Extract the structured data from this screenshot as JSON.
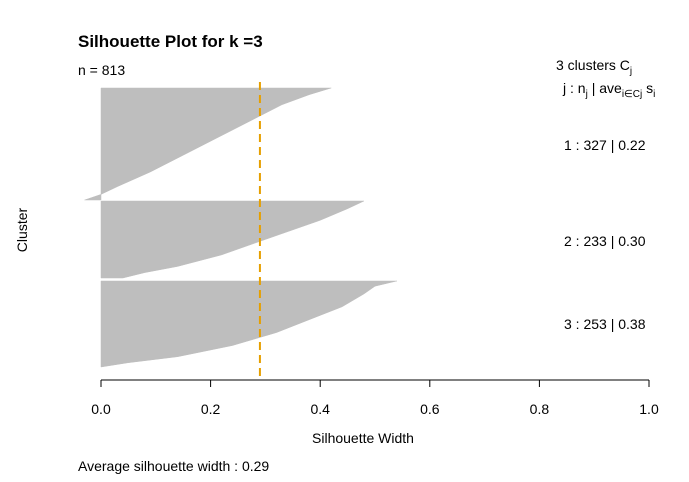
{
  "chart_data": {
    "type": "silhouette",
    "title": "Silhouette Plot for k =3",
    "n_label": "n = 813",
    "xlabel": "Silhouette Width",
    "ylabel": "Cluster",
    "xlim": [
      0,
      1
    ],
    "x_ticks": [
      "0.0",
      "0.2",
      "0.4",
      "0.6",
      "0.8",
      "1.0"
    ],
    "x_tick_values": [
      0,
      0.2,
      0.4,
      0.6,
      0.8,
      1.0
    ],
    "average_width": 0.29,
    "footer": "Average silhouette width :  0.29",
    "legend_header": {
      "line1": "3  clusters  C",
      "line1_sub": "j",
      "line2_a": "j :  n",
      "line2_a_sub": "j",
      "line2_b": " | ave",
      "line2_b_sub": "i∈Cj",
      "line2_c": "  s",
      "line2_c_sub": "i"
    },
    "clusters": [
      {
        "id": 1,
        "n": 327,
        "avg": 0.22,
        "label": "1 :   327  |  0.22",
        "profile": [
          [
            0,
            0.42
          ],
          [
            0.06,
            0.38
          ],
          [
            0.15,
            0.33
          ],
          [
            0.3,
            0.27
          ],
          [
            0.45,
            0.21
          ],
          [
            0.6,
            0.15
          ],
          [
            0.75,
            0.09
          ],
          [
            0.88,
            0.03
          ],
          [
            0.95,
            0.0
          ],
          [
            1.0,
            -0.03
          ]
        ]
      },
      {
        "id": 2,
        "n": 233,
        "avg": 0.3,
        "label": "2 :   233  |  0.30",
        "profile": [
          [
            0,
            0.48
          ],
          [
            0.1,
            0.45
          ],
          [
            0.25,
            0.4
          ],
          [
            0.4,
            0.34
          ],
          [
            0.55,
            0.28
          ],
          [
            0.7,
            0.22
          ],
          [
            0.85,
            0.14
          ],
          [
            0.93,
            0.08
          ],
          [
            1.0,
            0.04
          ]
        ]
      },
      {
        "id": 3,
        "n": 253,
        "avg": 0.38,
        "label": "3 :   253  |  0.38",
        "profile": [
          [
            0,
            0.54
          ],
          [
            0.06,
            0.5
          ],
          [
            0.15,
            0.48
          ],
          [
            0.3,
            0.44
          ],
          [
            0.45,
            0.38
          ],
          [
            0.6,
            0.32
          ],
          [
            0.75,
            0.24
          ],
          [
            0.88,
            0.14
          ],
          [
            0.95,
            0.05
          ],
          [
            1.0,
            0.0
          ]
        ]
      }
    ],
    "colors": {
      "bar": "#bebebe",
      "avg_line": "#e69f00",
      "axis": "#000000"
    }
  }
}
